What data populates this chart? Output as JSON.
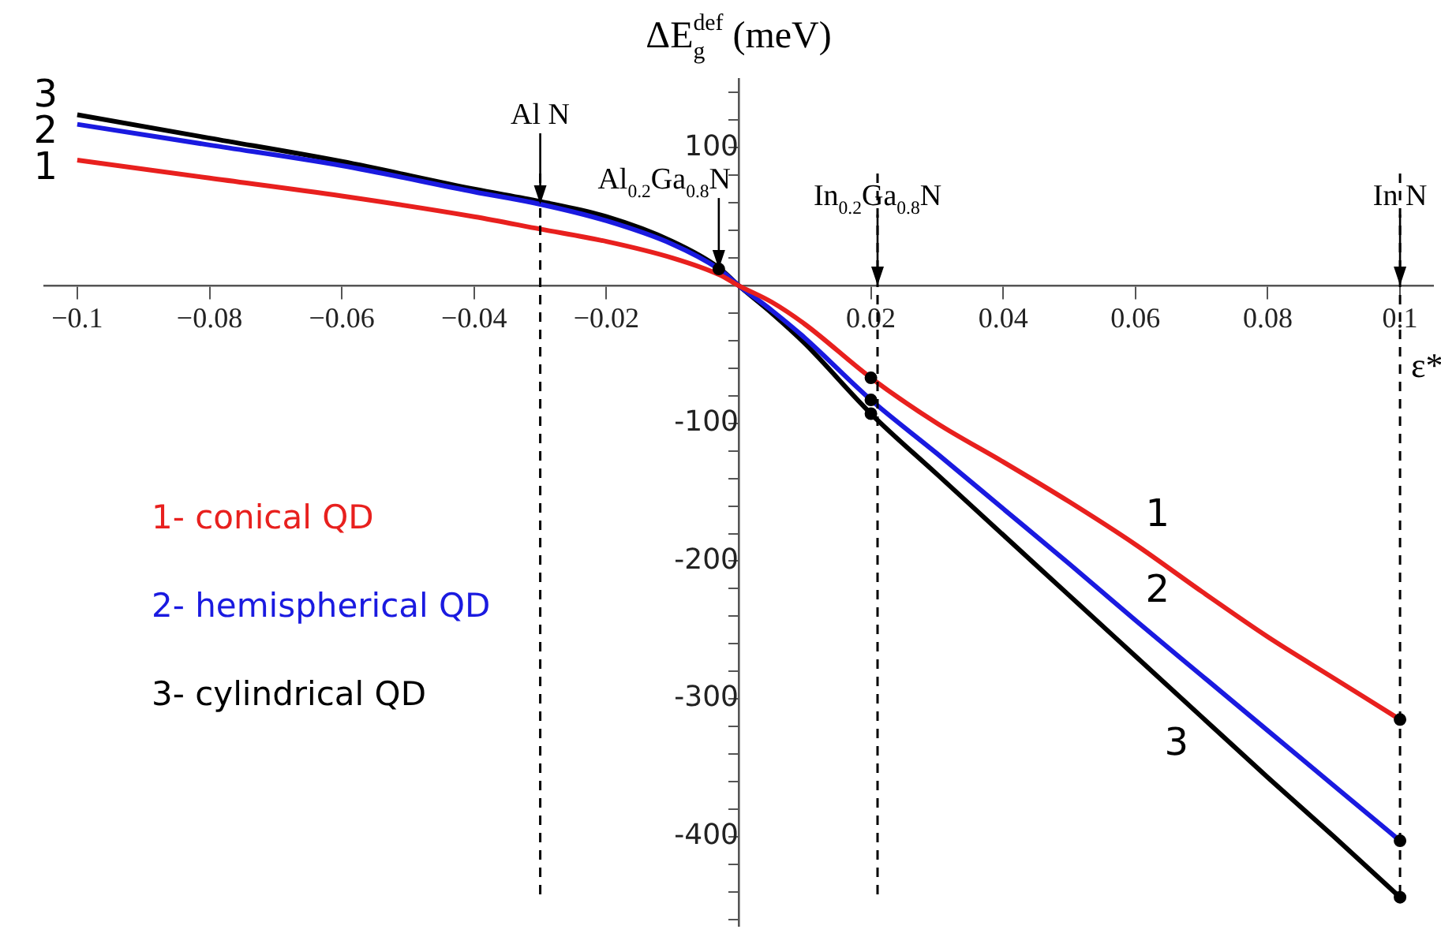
{
  "chart_data": {
    "type": "line",
    "ylabel": "ΔE$_{g}$$^{def}$ (meV)",
    "xlabel": "ε*",
    "x": [
      -0.1,
      -0.08,
      -0.06,
      -0.04,
      -0.03,
      -0.02,
      -0.01,
      -0.003,
      0,
      0.005,
      0.01,
      0.02,
      0.03,
      0.04,
      0.05,
      0.06,
      0.07,
      0.08,
      0.09,
      0.1
    ],
    "series": [
      {
        "name": "1- conical QD",
        "color": "#e8201e",
        "values": [
          91,
          78,
          65,
          50,
          41,
          32,
          20,
          8,
          0,
          -12,
          -28,
          -67,
          -100,
          -128,
          -157,
          -188,
          -222,
          -255,
          -285,
          -315
        ]
      },
      {
        "name": "2- hemispherical QD",
        "color": "#1a1ae0",
        "values": [
          117,
          102,
          87,
          68,
          59,
          47,
          30,
          12,
          0,
          -18,
          -38,
          -83,
          -122,
          -162,
          -202,
          -243,
          -283,
          -323,
          -363,
          -403
        ]
      },
      {
        "name": "3- cylindrical QD",
        "color": "#000000",
        "values": [
          124,
          107,
          90,
          70,
          61,
          50,
          32,
          13,
          0,
          -20,
          -42,
          -93,
          -137,
          -181,
          -225,
          -269,
          -313,
          -357,
          -400,
          -444
        ]
      },
      {
        "type": "scatter",
        "color": "#000000",
        "marker": "circle",
        "x": [
          -0.003,
          0.02,
          0.02,
          0.02,
          0.1,
          0.1,
          0.1
        ],
        "values": [
          12,
          -67,
          -83,
          -93,
          -315,
          -403,
          -444
        ]
      }
    ],
    "xlim": [
      -0.105,
      0.105
    ],
    "ylim": [
      -465,
      150
    ],
    "xticks": [
      {
        "value": -0.1,
        "label": "−0.1"
      },
      {
        "value": -0.08,
        "label": "−0.08"
      },
      {
        "value": -0.06,
        "label": "−0.06"
      },
      {
        "value": -0.04,
        "label": "−0.04"
      },
      {
        "value": -0.02,
        "label": "−0.02"
      },
      0.02,
      0.04,
      0.06,
      0.08,
      0.1
    ],
    "yticks": [
      {
        "value": 140,
        "label": null
      },
      {
        "value": 120,
        "label": null
      },
      100,
      {
        "value": 80,
        "label": null
      },
      {
        "value": 60,
        "label": null
      },
      {
        "value": 40,
        "label": null
      },
      {
        "value": 20,
        "label": null
      },
      {
        "value": -20,
        "label": null
      },
      {
        "value": -40,
        "label": null
      },
      {
        "value": -60,
        "label": null
      },
      {
        "value": -80,
        "label": null
      },
      -100,
      {
        "value": -120,
        "label": null
      },
      {
        "value": -140,
        "label": null
      },
      {
        "value": -160,
        "label": null
      },
      {
        "value": -180,
        "label": null
      },
      -200,
      {
        "value": -220,
        "label": null
      },
      {
        "value": -240,
        "label": null
      },
      {
        "value": -260,
        "label": null
      },
      {
        "value": -280,
        "label": null
      },
      -300,
      {
        "value": -320,
        "label": null
      },
      {
        "value": -340,
        "label": null
      },
      {
        "value": -360,
        "label": null
      },
      {
        "value": -380,
        "label": null
      },
      -400,
      {
        "value": -420,
        "label": null
      },
      {
        "value": -440,
        "label": null
      },
      {
        "value": -460,
        "label": null
      }
    ],
    "grid": false,
    "legend": "left",
    "line_style": "solid",
    "ref_lines": [
      {
        "axis": "x",
        "value": -0.03,
        "line_style": "dashed"
      },
      {
        "axis": "x",
        "value": 0.021,
        "line_style": "dashed"
      },
      {
        "axis": "x",
        "value": 0.1,
        "line_style": "dashed"
      }
    ],
    "annotations": [
      {
        "text": "Al N",
        "x": -0.03,
        "y": 59
      },
      {
        "text": "Al$_{0.2}$Ga$_{0.8}$N",
        "x": -0.003,
        "y": 12
      },
      {
        "text": "In$_{0.2}$Ga$_{0.8}$N",
        "x": 0.021,
        "y": 0
      },
      {
        "text": "In N",
        "x": 0.1,
        "y": 0
      },
      {
        "text": "3",
        "x": -0.1,
        "y": 124
      },
      {
        "text": "2",
        "x": -0.1,
        "y": 117
      },
      {
        "text": "1",
        "x": -0.1,
        "y": 91
      },
      {
        "text": "1",
        "x": 0.06,
        "y": -188
      },
      {
        "text": "2",
        "x": 0.06,
        "y": -243
      },
      {
        "text": "3",
        "x": 0.07,
        "y": -313
      }
    ]
  }
}
